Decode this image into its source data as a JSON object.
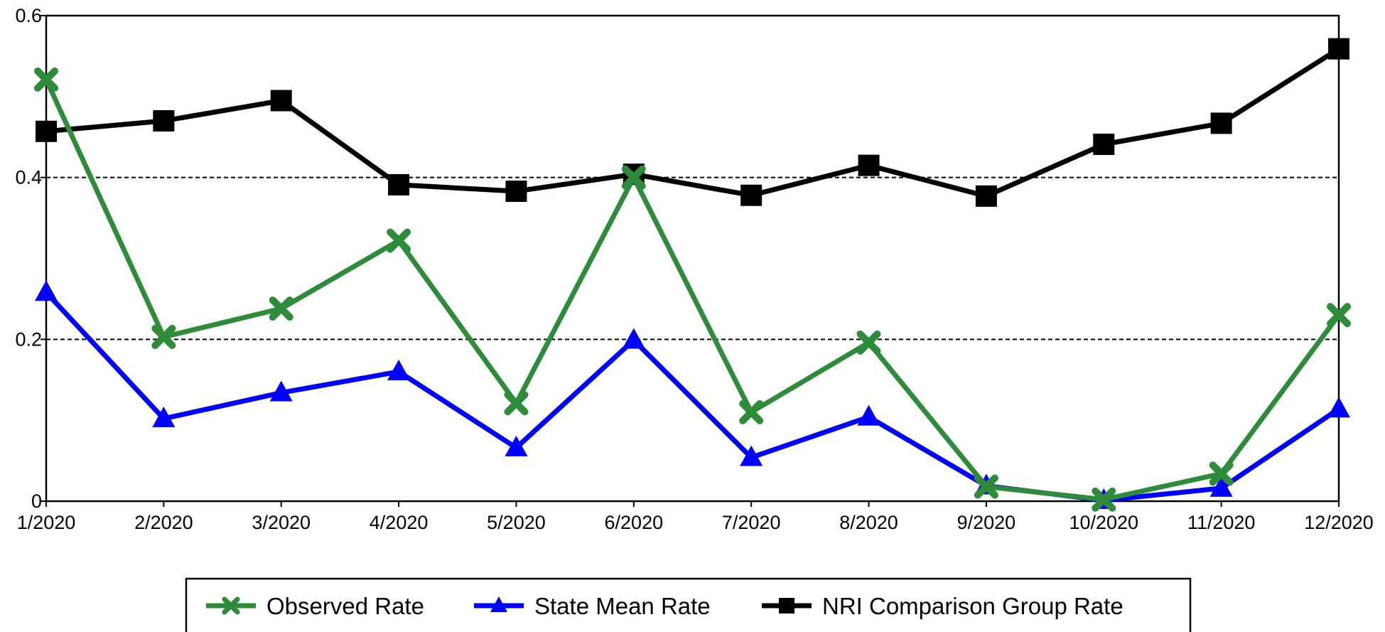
{
  "chart_data": {
    "type": "line",
    "title": "",
    "xlabel": "",
    "ylabel": "",
    "categories": [
      "1/2020",
      "2/2020",
      "3/2020",
      "4/2020",
      "5/2020",
      "6/2020",
      "7/2020",
      "8/2020",
      "9/2020",
      "10/2020",
      "11/2020",
      "12/2020"
    ],
    "ylim": [
      0,
      0.6
    ],
    "yticks": [
      0,
      0.2,
      0.4,
      0.6
    ],
    "ytick_labels": [
      "0",
      "0.2",
      "0.4",
      "0.6"
    ],
    "gridlines": {
      "values": [
        0.2,
        0.4
      ],
      "style": "dashed"
    },
    "legend_position": "bottom",
    "series": [
      {
        "name": "Observed Rate",
        "color": "#2e8b3a",
        "marker": "x",
        "values": [
          0.521,
          0.203,
          0.238,
          0.322,
          0.121,
          0.4,
          0.11,
          0.196,
          0.018,
          0.002,
          0.034,
          0.23
        ]
      },
      {
        "name": "State Mean Rate",
        "color": "#0000ff",
        "marker": "triangle",
        "values": [
          0.258,
          0.102,
          0.134,
          0.16,
          0.066,
          0.199,
          0.054,
          0.104,
          0.019,
          0.001,
          0.016,
          0.114
        ]
      },
      {
        "name": "NRI Comparison Group Rate",
        "color": "#000000",
        "marker": "square",
        "values": [
          0.457,
          0.47,
          0.495,
          0.391,
          0.383,
          0.404,
          0.378,
          0.415,
          0.377,
          0.441,
          0.467,
          0.559
        ]
      }
    ]
  }
}
